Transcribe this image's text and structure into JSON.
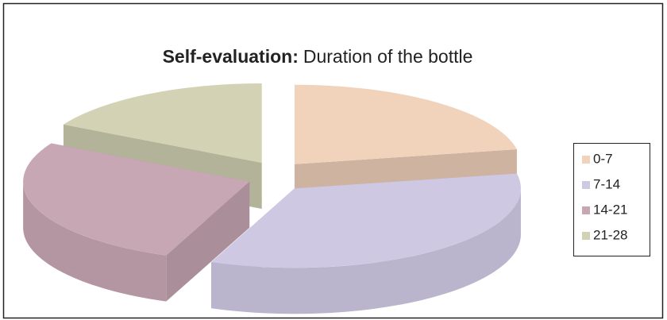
{
  "chart_data": {
    "type": "pie3d",
    "title_bold": "Self-evaluation:",
    "title": "Duration of the bottle",
    "series": [
      {
        "name": "0-7",
        "color": "#f1d3bc",
        "values": [
          22
        ]
      },
      {
        "name": "7-14",
        "color": "#cfc8e3",
        "values": [
          34
        ]
      },
      {
        "name": "14-21",
        "color": "#c8a7b5",
        "values": [
          27
        ]
      },
      {
        "name": "21-28",
        "color": "#d3d2b4",
        "values": [
          17
        ]
      }
    ],
    "legend": "right"
  }
}
